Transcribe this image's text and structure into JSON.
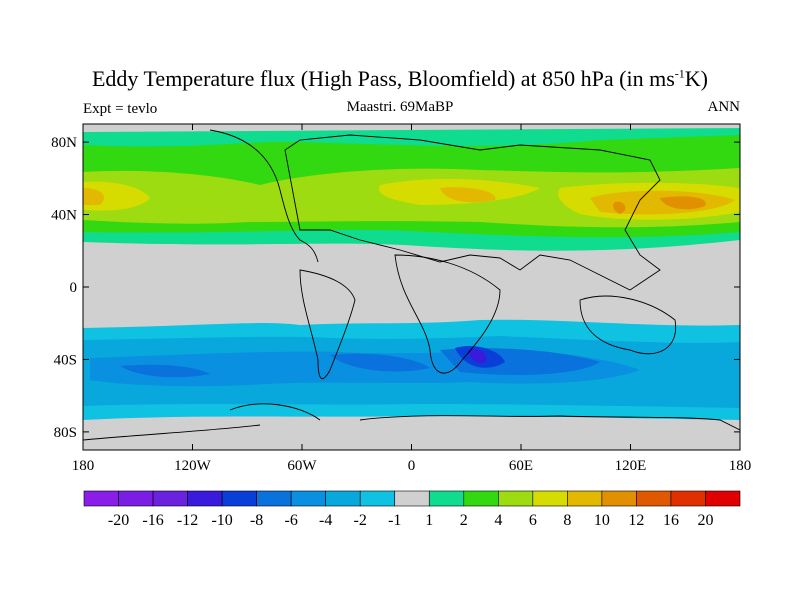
{
  "title": {
    "main": "Eddy Temperature flux (High Pass, Bloomfield) at 850 hPa (in ms",
    "sup": "-1",
    "unit_end": "K)"
  },
  "left_string": "Expt = tevlo",
  "center_string": "Maastri.  69MaBP",
  "right_string": "ANN",
  "chart_data": {
    "type": "heatmap",
    "projection": "cylindrical equidistant",
    "variable": "Eddy temperature flux, 850 hPa, annual mean",
    "xlim": [
      -180,
      180
    ],
    "ylim": [
      -90,
      90
    ],
    "x_ticks": [
      {
        "v": -180,
        "label": "180"
      },
      {
        "v": -120,
        "label": "120W"
      },
      {
        "v": -60,
        "label": "60W"
      },
      {
        "v": 0,
        "label": "0"
      },
      {
        "v": 60,
        "label": "60E"
      },
      {
        "v": 120,
        "label": "120E"
      },
      {
        "v": 180,
        "label": "180"
      }
    ],
    "y_ticks": [
      {
        "v": 80,
        "label": "80N"
      },
      {
        "v": 40,
        "label": "40N"
      },
      {
        "v": 0,
        "label": "0"
      },
      {
        "v": -40,
        "label": "40S"
      },
      {
        "v": -80,
        "label": "80S"
      }
    ],
    "colorbar": {
      "labels": [
        "-20",
        "-16",
        "-12",
        "-10",
        "-8",
        "-6",
        "-4",
        "-2",
        "-1",
        "1",
        "2",
        "4",
        "6",
        "8",
        "10",
        "12",
        "16",
        "20"
      ],
      "colors": [
        "#8a1ee8",
        "#7a1ee6",
        "#6a22de",
        "#3a1adc",
        "#0a3ed8",
        "#0a72dc",
        "#0a90e0",
        "#08a8dc",
        "#10c2e2",
        "#d0d0d0",
        "#10dc90",
        "#32d810",
        "#9cdc10",
        "#d6dc00",
        "#e2b800",
        "#e09000",
        "#e05800",
        "#e03000",
        "#e00000"
      ]
    },
    "features": {
      "nh_storm_track": "positive 1-6 band 30N-75N, maxima 8-10 near 40N over N. Pacific (~150E) and Atlantic/Asia",
      "sh_storm_track": "negative -2 to -8 band 30S-70S, minimum about -12 near 40S, 35E"
    }
  }
}
